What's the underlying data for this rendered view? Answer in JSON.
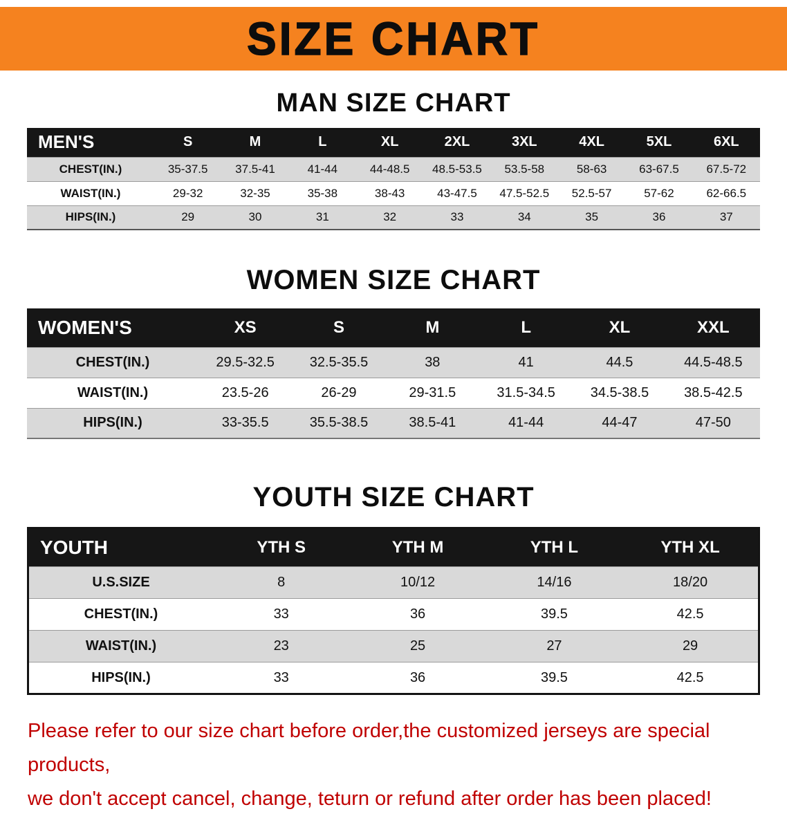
{
  "banner": {
    "title": "SIZE CHART"
  },
  "colors": {
    "banner_bg": "#F5821F",
    "header_row_bg": "#161616",
    "stripe": "#D9D9D9",
    "footer_red": "#C00000"
  },
  "men": {
    "heading": "MAN SIZE CHART",
    "label": "MEN'S",
    "cols": [
      "S",
      "M",
      "L",
      "XL",
      "2XL",
      "3XL",
      "4XL",
      "5XL",
      "6XL"
    ],
    "rows": [
      {
        "label": "CHEST(IN.)",
        "v": [
          "35-37.5",
          "37.5-41",
          "41-44",
          "44-48.5",
          "48.5-53.5",
          "53.5-58",
          "58-63",
          "63-67.5",
          "67.5-72"
        ]
      },
      {
        "label": "WAIST(IN.)",
        "v": [
          "29-32",
          "32-35",
          "35-38",
          "38-43",
          "43-47.5",
          "47.5-52.5",
          "52.5-57",
          "57-62",
          "62-66.5"
        ]
      },
      {
        "label": "HIPS(IN.)",
        "v": [
          "29",
          "30",
          "31",
          "32",
          "33",
          "34",
          "35",
          "36",
          "37"
        ]
      }
    ]
  },
  "women": {
    "heading": "WOMEN SIZE CHART",
    "label": "WOMEN'S",
    "cols": [
      "XS",
      "S",
      "M",
      "L",
      "XL",
      "XXL"
    ],
    "rows": [
      {
        "label": "CHEST(IN.)",
        "v": [
          "29.5-32.5",
          "32.5-35.5",
          "38",
          "41",
          "44.5",
          "44.5-48.5"
        ]
      },
      {
        "label": "WAIST(IN.)",
        "v": [
          "23.5-26",
          "26-29",
          "29-31.5",
          "31.5-34.5",
          "34.5-38.5",
          "38.5-42.5"
        ]
      },
      {
        "label": "HIPS(IN.)",
        "v": [
          "33-35.5",
          "35.5-38.5",
          "38.5-41",
          "41-44",
          "44-47",
          "47-50"
        ]
      }
    ]
  },
  "youth": {
    "heading": "YOUTH SIZE CHART",
    "label": "YOUTH",
    "cols": [
      "YTH S",
      "YTH M",
      "YTH L",
      "YTH XL"
    ],
    "rows": [
      {
        "label": "U.S.SIZE",
        "v": [
          "8",
          "10/12",
          "14/16",
          "18/20"
        ]
      },
      {
        "label": "CHEST(IN.)",
        "v": [
          "33",
          "36",
          "39.5",
          "42.5"
        ]
      },
      {
        "label": "WAIST(IN.)",
        "v": [
          "23",
          "25",
          "27",
          "29"
        ]
      },
      {
        "label": "HIPS(IN.)",
        "v": [
          "33",
          "36",
          "39.5",
          "42.5"
        ]
      }
    ]
  },
  "footer": {
    "line1": "Please refer to our size chart before order,the customized jerseys are special products,",
    "line2": "we don't accept cancel, change, teturn or refund after order has been placed!"
  }
}
